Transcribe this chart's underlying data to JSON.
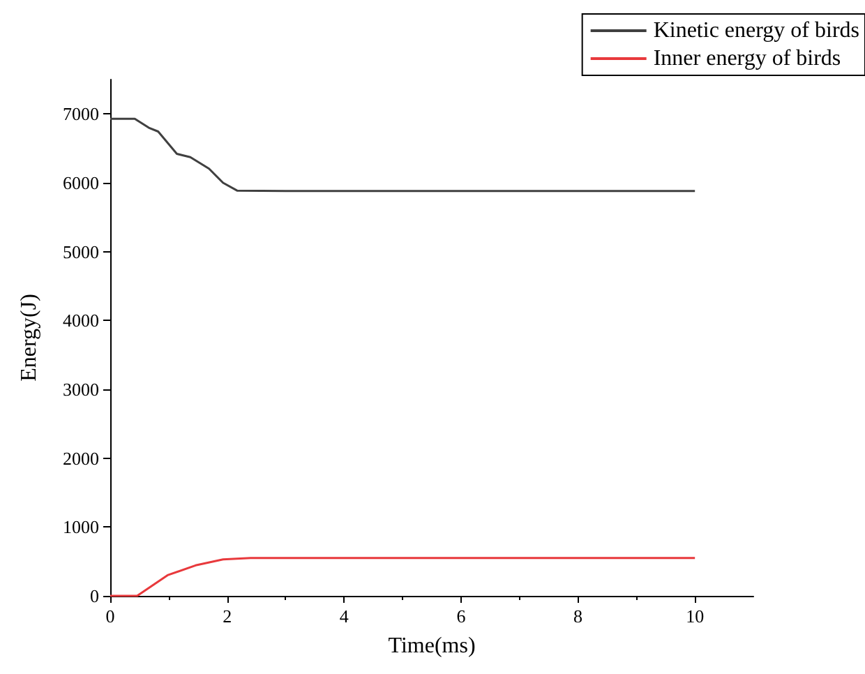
{
  "chart_data": {
    "type": "line",
    "xlabel": "Time(ms)",
    "ylabel": "Energy(J)",
    "xlim": [
      0,
      11
    ],
    "xticks": [
      0,
      2,
      4,
      6,
      8,
      10
    ],
    "ylim": [
      0,
      7500
    ],
    "yticks": [
      0,
      1000,
      2000,
      3000,
      4000,
      5000,
      6000,
      7000
    ],
    "grid": false,
    "legend": "top right",
    "marker": "none",
    "line_style": "solid",
    "series": [
      {
        "name": "Kinetic energy of birds",
        "color": "#404040",
        "x": [
          0,
          0.42,
          0.66,
          0.82,
          1.14,
          1.37,
          1.69,
          1.93,
          2.17,
          3,
          4,
          5,
          6,
          7,
          8,
          9,
          10
        ],
        "values": [
          6930,
          6930,
          6800,
          6745,
          6420,
          6373,
          6205,
          6000,
          5887,
          5880,
          5880,
          5880,
          5880,
          5880,
          5880,
          5880,
          5880
        ]
      },
      {
        "name": "Inner energy of birds",
        "color": "#e8393c",
        "x": [
          0,
          0.46,
          0.98,
          1.46,
          1.93,
          2.4,
          3,
          4,
          5,
          6,
          7,
          8,
          9,
          10
        ],
        "values": [
          0,
          0,
          300,
          443,
          530,
          550,
          550,
          550,
          550,
          550,
          550,
          550,
          550,
          550
        ]
      }
    ]
  }
}
